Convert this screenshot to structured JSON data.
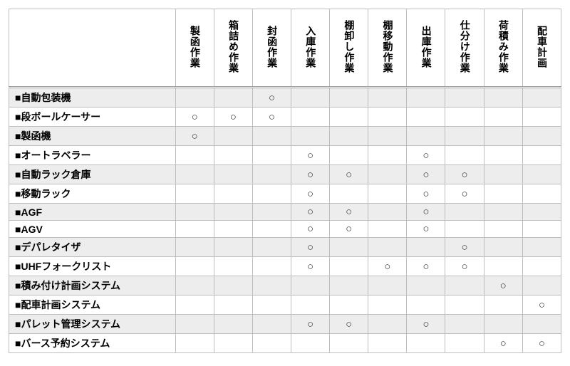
{
  "table": {
    "type": "table",
    "mark": "○",
    "square": "■",
    "colors": {
      "border": "#bdbdbd",
      "shaded_row": "#ededed",
      "background": "#ffffff",
      "text": "#000000"
    },
    "columns": [
      "製函作業",
      "箱詰め作業",
      "封函作業",
      "入庫作業",
      "棚卸し作業",
      "棚移動作業",
      "出庫作業",
      "仕分け作業",
      "荷積み作業",
      "配車計画"
    ],
    "rows": [
      {
        "label": "自動包装機",
        "shaded": true,
        "cells": [
          0,
          0,
          1,
          0,
          0,
          0,
          0,
          0,
          0,
          0
        ]
      },
      {
        "label": "段ボールケーサー",
        "shaded": false,
        "cells": [
          1,
          1,
          1,
          0,
          0,
          0,
          0,
          0,
          0,
          0
        ]
      },
      {
        "label": "製函機",
        "shaded": true,
        "cells": [
          1,
          0,
          0,
          0,
          0,
          0,
          0,
          0,
          0,
          0
        ]
      },
      {
        "label": "オートラベラー",
        "shaded": false,
        "cells": [
          0,
          0,
          0,
          1,
          0,
          0,
          1,
          0,
          0,
          0
        ]
      },
      {
        "label": "自動ラック倉庫",
        "shaded": true,
        "cells": [
          0,
          0,
          0,
          1,
          1,
          0,
          1,
          1,
          0,
          0
        ]
      },
      {
        "label": "移動ラック",
        "shaded": false,
        "cells": [
          0,
          0,
          0,
          1,
          0,
          0,
          1,
          1,
          0,
          0
        ]
      },
      {
        "label": "AGF",
        "shaded": true,
        "cells": [
          0,
          0,
          0,
          1,
          1,
          0,
          1,
          0,
          0,
          0
        ]
      },
      {
        "label": "AGV",
        "shaded": false,
        "cells": [
          0,
          0,
          0,
          1,
          1,
          0,
          1,
          0,
          0,
          0
        ]
      },
      {
        "label": "デパレタイザ",
        "shaded": true,
        "cells": [
          0,
          0,
          0,
          1,
          0,
          0,
          0,
          1,
          0,
          0
        ]
      },
      {
        "label": "UHFフォークリスト",
        "shaded": false,
        "cells": [
          0,
          0,
          0,
          1,
          0,
          1,
          1,
          1,
          0,
          0
        ]
      },
      {
        "label": "積み付け計画システム",
        "shaded": true,
        "cells": [
          0,
          0,
          0,
          0,
          0,
          0,
          0,
          0,
          1,
          0
        ]
      },
      {
        "label": "配車計画システム",
        "shaded": false,
        "cells": [
          0,
          0,
          0,
          0,
          0,
          0,
          0,
          0,
          0,
          1
        ]
      },
      {
        "label": "パレット管理システム",
        "shaded": true,
        "cells": [
          0,
          0,
          0,
          1,
          1,
          0,
          1,
          0,
          0,
          0
        ]
      },
      {
        "label": "バース予約システム",
        "shaded": false,
        "cells": [
          0,
          0,
          0,
          0,
          0,
          0,
          0,
          0,
          1,
          1
        ]
      }
    ]
  }
}
